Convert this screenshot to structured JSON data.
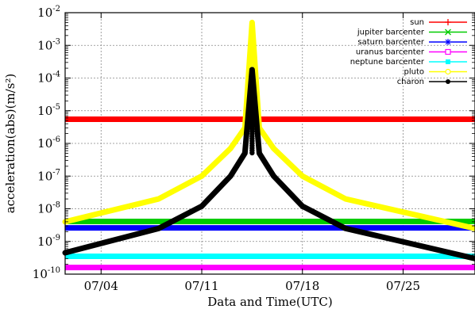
{
  "chart_data": {
    "type": "line",
    "xlabel": "Data and Time(UTC)",
    "ylabel": "acceleration(abs)(m/s²)",
    "x_tick_labels": [
      "07/04",
      "07/11",
      "07/18",
      "07/25"
    ],
    "x_ticks": [
      "2015-07-04",
      "2015-07-11",
      "2015-07-18",
      "2015-07-25"
    ],
    "xlim": [
      "2015-07-01T12:00",
      "2015-07-30"
    ],
    "y_scale": "log",
    "ylim": [
      1e-10,
      0.01
    ],
    "y_tick_exponents": [
      -10,
      -9,
      -8,
      -7,
      -6,
      -5,
      -4,
      -3,
      -2
    ],
    "y_tick_base": "10",
    "grid": true,
    "legend_position": "top-right",
    "series": [
      {
        "name": "sun",
        "color": "#ff0000",
        "marker": "plus",
        "kind": "constant",
        "value": 5.5e-06
      },
      {
        "name": "jupiter barcenter",
        "color": "#00cc00",
        "marker": "x",
        "kind": "constant",
        "value": 4.1e-09
      },
      {
        "name": "saturn barcenter",
        "color": "#0000ff",
        "marker": "star",
        "kind": "constant",
        "value": 2.6e-09
      },
      {
        "name": "uranus barcenter",
        "color": "#ff00ff",
        "marker": "square",
        "kind": "constant",
        "value": 1.6e-10
      },
      {
        "name": "neptune barcenter",
        "color": "#00ffff",
        "marker": "filled-square",
        "kind": "constant",
        "value": 3.5e-10
      },
      {
        "name": "pluto",
        "color": "#ffff00",
        "marker": "circle",
        "kind": "peak",
        "points": [
          [
            "2015-07-01T12:00",
            4e-09
          ],
          [
            "2015-07-08",
            2e-08
          ],
          [
            "2015-07-11",
            1e-07
          ],
          [
            "2015-07-13",
            7e-07
          ],
          [
            "2015-07-14",
            3e-06
          ],
          [
            "2015-07-14T12:00",
            0.005
          ],
          [
            "2015-07-15",
            3e-06
          ],
          [
            "2015-07-16",
            7e-07
          ],
          [
            "2015-07-18",
            1e-07
          ],
          [
            "2015-07-21",
            2e-08
          ],
          [
            "2015-07-30",
            2.5e-09
          ]
        ]
      },
      {
        "name": "charon",
        "color": "#000000",
        "marker": "filled-circle",
        "kind": "peak",
        "points": [
          [
            "2015-07-01T12:00",
            4.5e-10
          ],
          [
            "2015-07-08",
            2.5e-09
          ],
          [
            "2015-07-11",
            1.2e-08
          ],
          [
            "2015-07-13",
            1e-07
          ],
          [
            "2015-07-14",
            5e-07
          ],
          [
            "2015-07-14T12:00",
            0.00018
          ],
          [
            "2015-07-15",
            5e-07
          ],
          [
            "2015-07-16",
            1e-07
          ],
          [
            "2015-07-18",
            1.2e-08
          ],
          [
            "2015-07-21",
            2.5e-09
          ],
          [
            "2015-07-30",
            3e-10
          ]
        ]
      }
    ]
  }
}
